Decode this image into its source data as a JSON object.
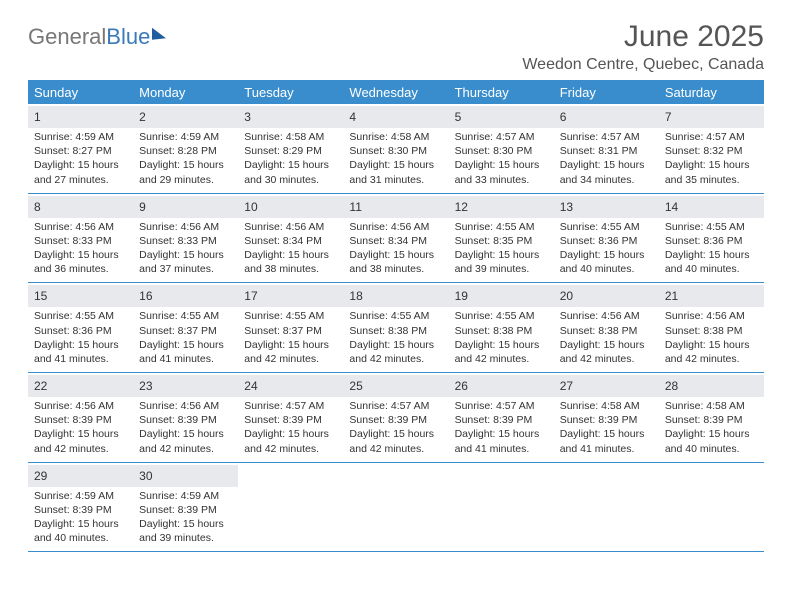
{
  "logo": {
    "part1": "General",
    "part2": "Blue"
  },
  "title": "June 2025",
  "location": "Weedon Centre, Quebec, Canada",
  "colors": {
    "header_bg": "#3a8dcd",
    "header_text": "#ffffff",
    "divider": "#3a8dcd",
    "daynum_bg": "#e7e9ec",
    "text": "#333333",
    "background": "#ffffff",
    "logo_gray": "#777777",
    "logo_blue": "#3a7ab8"
  },
  "typography": {
    "title_fontsize": 30,
    "location_fontsize": 16,
    "dayheader_fontsize": 13,
    "daynum_fontsize": 12,
    "detail_fontsize": 10.5
  },
  "day_names": [
    "Sunday",
    "Monday",
    "Tuesday",
    "Wednesday",
    "Thursday",
    "Friday",
    "Saturday"
  ],
  "weeks": [
    [
      {
        "n": "1",
        "sr": "4:59 AM",
        "ss": "8:27 PM",
        "dl": "15 hours and 27 minutes."
      },
      {
        "n": "2",
        "sr": "4:59 AM",
        "ss": "8:28 PM",
        "dl": "15 hours and 29 minutes."
      },
      {
        "n": "3",
        "sr": "4:58 AM",
        "ss": "8:29 PM",
        "dl": "15 hours and 30 minutes."
      },
      {
        "n": "4",
        "sr": "4:58 AM",
        "ss": "8:30 PM",
        "dl": "15 hours and 31 minutes."
      },
      {
        "n": "5",
        "sr": "4:57 AM",
        "ss": "8:30 PM",
        "dl": "15 hours and 33 minutes."
      },
      {
        "n": "6",
        "sr": "4:57 AM",
        "ss": "8:31 PM",
        "dl": "15 hours and 34 minutes."
      },
      {
        "n": "7",
        "sr": "4:57 AM",
        "ss": "8:32 PM",
        "dl": "15 hours and 35 minutes."
      }
    ],
    [
      {
        "n": "8",
        "sr": "4:56 AM",
        "ss": "8:33 PM",
        "dl": "15 hours and 36 minutes."
      },
      {
        "n": "9",
        "sr": "4:56 AM",
        "ss": "8:33 PM",
        "dl": "15 hours and 37 minutes."
      },
      {
        "n": "10",
        "sr": "4:56 AM",
        "ss": "8:34 PM",
        "dl": "15 hours and 38 minutes."
      },
      {
        "n": "11",
        "sr": "4:56 AM",
        "ss": "8:34 PM",
        "dl": "15 hours and 38 minutes."
      },
      {
        "n": "12",
        "sr": "4:55 AM",
        "ss": "8:35 PM",
        "dl": "15 hours and 39 minutes."
      },
      {
        "n": "13",
        "sr": "4:55 AM",
        "ss": "8:36 PM",
        "dl": "15 hours and 40 minutes."
      },
      {
        "n": "14",
        "sr": "4:55 AM",
        "ss": "8:36 PM",
        "dl": "15 hours and 40 minutes."
      }
    ],
    [
      {
        "n": "15",
        "sr": "4:55 AM",
        "ss": "8:36 PM",
        "dl": "15 hours and 41 minutes."
      },
      {
        "n": "16",
        "sr": "4:55 AM",
        "ss": "8:37 PM",
        "dl": "15 hours and 41 minutes."
      },
      {
        "n": "17",
        "sr": "4:55 AM",
        "ss": "8:37 PM",
        "dl": "15 hours and 42 minutes."
      },
      {
        "n": "18",
        "sr": "4:55 AM",
        "ss": "8:38 PM",
        "dl": "15 hours and 42 minutes."
      },
      {
        "n": "19",
        "sr": "4:55 AM",
        "ss": "8:38 PM",
        "dl": "15 hours and 42 minutes."
      },
      {
        "n": "20",
        "sr": "4:56 AM",
        "ss": "8:38 PM",
        "dl": "15 hours and 42 minutes."
      },
      {
        "n": "21",
        "sr": "4:56 AM",
        "ss": "8:38 PM",
        "dl": "15 hours and 42 minutes."
      }
    ],
    [
      {
        "n": "22",
        "sr": "4:56 AM",
        "ss": "8:39 PM",
        "dl": "15 hours and 42 minutes."
      },
      {
        "n": "23",
        "sr": "4:56 AM",
        "ss": "8:39 PM",
        "dl": "15 hours and 42 minutes."
      },
      {
        "n": "24",
        "sr": "4:57 AM",
        "ss": "8:39 PM",
        "dl": "15 hours and 42 minutes."
      },
      {
        "n": "25",
        "sr": "4:57 AM",
        "ss": "8:39 PM",
        "dl": "15 hours and 42 minutes."
      },
      {
        "n": "26",
        "sr": "4:57 AM",
        "ss": "8:39 PM",
        "dl": "15 hours and 41 minutes."
      },
      {
        "n": "27",
        "sr": "4:58 AM",
        "ss": "8:39 PM",
        "dl": "15 hours and 41 minutes."
      },
      {
        "n": "28",
        "sr": "4:58 AM",
        "ss": "8:39 PM",
        "dl": "15 hours and 40 minutes."
      }
    ],
    [
      {
        "n": "29",
        "sr": "4:59 AM",
        "ss": "8:39 PM",
        "dl": "15 hours and 40 minutes."
      },
      {
        "n": "30",
        "sr": "4:59 AM",
        "ss": "8:39 PM",
        "dl": "15 hours and 39 minutes."
      },
      null,
      null,
      null,
      null,
      null
    ]
  ],
  "labels": {
    "sunrise": "Sunrise:",
    "sunset": "Sunset:",
    "daylight": "Daylight:"
  }
}
